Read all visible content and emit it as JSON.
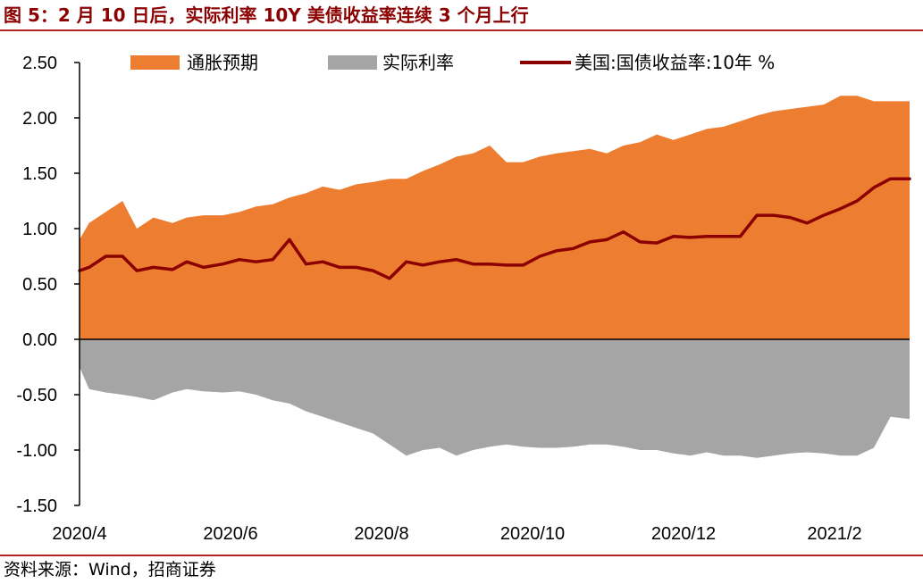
{
  "title": "图 5：2 月 10 日后，实际利率 10Y 美债收益率连续 3 个月上行",
  "source": "资料来源：Wind，招商证券",
  "chart_data": {
    "type": "area",
    "x_tick_labels": [
      "2020/4",
      "2020/6",
      "2020/8",
      "2020/10",
      "2020/12",
      "2021/2"
    ],
    "y_tick_labels": [
      "2.50",
      "2.00",
      "1.50",
      "1.00",
      "0.50",
      "0.00",
      "-0.50",
      "-1.00",
      "-1.50"
    ],
    "ylim": [
      -1.5,
      2.5
    ],
    "x_range": [
      "2020-03-27",
      "2021-03-10"
    ],
    "grid": false,
    "legend_position": "top",
    "colors": {
      "inflation": "#ED7D31",
      "real": "#A5A5A5",
      "yield": "#8B0000"
    },
    "series": [
      {
        "name": "通胀预期",
        "kind": "area",
        "x": [
          "2020-03-27",
          "2020-03-31",
          "2020-04-07",
          "2020-04-14",
          "2020-04-20",
          "2020-04-27",
          "2020-05-05",
          "2020-05-11",
          "2020-05-18",
          "2020-05-26",
          "2020-06-02",
          "2020-06-09",
          "2020-06-16",
          "2020-06-23",
          "2020-06-30",
          "2020-07-07",
          "2020-07-14",
          "2020-07-21",
          "2020-07-28",
          "2020-08-04",
          "2020-08-11",
          "2020-08-18",
          "2020-08-25",
          "2020-09-01",
          "2020-09-08",
          "2020-09-15",
          "2020-09-22",
          "2020-09-29",
          "2020-10-06",
          "2020-10-13",
          "2020-10-20",
          "2020-10-27",
          "2020-11-03",
          "2020-11-10",
          "2020-11-17",
          "2020-11-24",
          "2020-12-01",
          "2020-12-08",
          "2020-12-15",
          "2020-12-22",
          "2020-12-29",
          "2021-01-05",
          "2021-01-12",
          "2021-01-19",
          "2021-01-26",
          "2021-02-02",
          "2021-02-09",
          "2021-02-16",
          "2021-02-23",
          "2021-03-02",
          "2021-03-10"
        ],
        "values": [
          0.9,
          1.05,
          1.15,
          1.25,
          1.0,
          1.1,
          1.05,
          1.1,
          1.12,
          1.12,
          1.15,
          1.2,
          1.22,
          1.28,
          1.32,
          1.38,
          1.35,
          1.4,
          1.42,
          1.45,
          1.45,
          1.52,
          1.58,
          1.65,
          1.68,
          1.75,
          1.6,
          1.6,
          1.65,
          1.68,
          1.7,
          1.72,
          1.68,
          1.75,
          1.78,
          1.85,
          1.8,
          1.85,
          1.9,
          1.92,
          1.97,
          2.02,
          2.06,
          2.08,
          2.1,
          2.12,
          2.2,
          2.2,
          2.15,
          2.15,
          2.15
        ]
      },
      {
        "name": "实际利率",
        "kind": "area",
        "x": [
          "2020-03-27",
          "2020-03-31",
          "2020-04-07",
          "2020-04-14",
          "2020-04-20",
          "2020-04-27",
          "2020-05-05",
          "2020-05-11",
          "2020-05-18",
          "2020-05-26",
          "2020-06-02",
          "2020-06-09",
          "2020-06-16",
          "2020-06-23",
          "2020-06-30",
          "2020-07-07",
          "2020-07-14",
          "2020-07-21",
          "2020-07-28",
          "2020-08-04",
          "2020-08-11",
          "2020-08-18",
          "2020-08-25",
          "2020-09-01",
          "2020-09-08",
          "2020-09-15",
          "2020-09-22",
          "2020-09-29",
          "2020-10-06",
          "2020-10-13",
          "2020-10-20",
          "2020-10-27",
          "2020-11-03",
          "2020-11-10",
          "2020-11-17",
          "2020-11-24",
          "2020-12-01",
          "2020-12-08",
          "2020-12-15",
          "2020-12-22",
          "2020-12-29",
          "2021-01-05",
          "2021-01-12",
          "2021-01-19",
          "2021-01-26",
          "2021-02-02",
          "2021-02-09",
          "2021-02-16",
          "2021-02-23",
          "2021-03-02",
          "2021-03-10"
        ],
        "values": [
          -0.25,
          -0.45,
          -0.48,
          -0.5,
          -0.52,
          -0.55,
          -0.48,
          -0.45,
          -0.47,
          -0.48,
          -0.47,
          -0.5,
          -0.55,
          -0.58,
          -0.65,
          -0.7,
          -0.75,
          -0.8,
          -0.85,
          -0.95,
          -1.05,
          -1.0,
          -0.98,
          -1.05,
          -1.0,
          -0.97,
          -0.95,
          -0.97,
          -0.98,
          -0.98,
          -0.97,
          -0.95,
          -0.95,
          -0.97,
          -1.0,
          -1.0,
          -1.03,
          -1.05,
          -1.02,
          -1.05,
          -1.05,
          -1.07,
          -1.05,
          -1.03,
          -1.02,
          -1.03,
          -1.05,
          -1.05,
          -0.98,
          -0.7,
          -0.72
        ]
      },
      {
        "name": "美国:国债收益率:10年 %",
        "kind": "line",
        "x": [
          "2020-03-27",
          "2020-03-31",
          "2020-04-07",
          "2020-04-14",
          "2020-04-20",
          "2020-04-27",
          "2020-05-05",
          "2020-05-11",
          "2020-05-18",
          "2020-05-26",
          "2020-06-02",
          "2020-06-09",
          "2020-06-16",
          "2020-06-23",
          "2020-06-30",
          "2020-07-07",
          "2020-07-14",
          "2020-07-21",
          "2020-07-28",
          "2020-08-04",
          "2020-08-11",
          "2020-08-18",
          "2020-08-25",
          "2020-09-01",
          "2020-09-08",
          "2020-09-15",
          "2020-09-22",
          "2020-09-29",
          "2020-10-06",
          "2020-10-13",
          "2020-10-20",
          "2020-10-27",
          "2020-11-03",
          "2020-11-10",
          "2020-11-17",
          "2020-11-24",
          "2020-12-01",
          "2020-12-08",
          "2020-12-15",
          "2020-12-22",
          "2020-12-29",
          "2021-01-05",
          "2021-01-12",
          "2021-01-19",
          "2021-01-26",
          "2021-02-02",
          "2021-02-09",
          "2021-02-16",
          "2021-02-23",
          "2021-03-02",
          "2021-03-10"
        ],
        "values": [
          0.62,
          0.65,
          0.75,
          0.75,
          0.62,
          0.65,
          0.63,
          0.7,
          0.65,
          0.68,
          0.72,
          0.7,
          0.72,
          0.9,
          0.68,
          0.7,
          0.65,
          0.65,
          0.62,
          0.55,
          0.7,
          0.67,
          0.7,
          0.72,
          0.68,
          0.68,
          0.67,
          0.67,
          0.75,
          0.8,
          0.82,
          0.88,
          0.9,
          0.97,
          0.88,
          0.87,
          0.93,
          0.92,
          0.93,
          0.93,
          0.93,
          1.12,
          1.12,
          1.1,
          1.05,
          1.12,
          1.18,
          1.25,
          1.37,
          1.45,
          1.45
        ]
      }
    ]
  }
}
